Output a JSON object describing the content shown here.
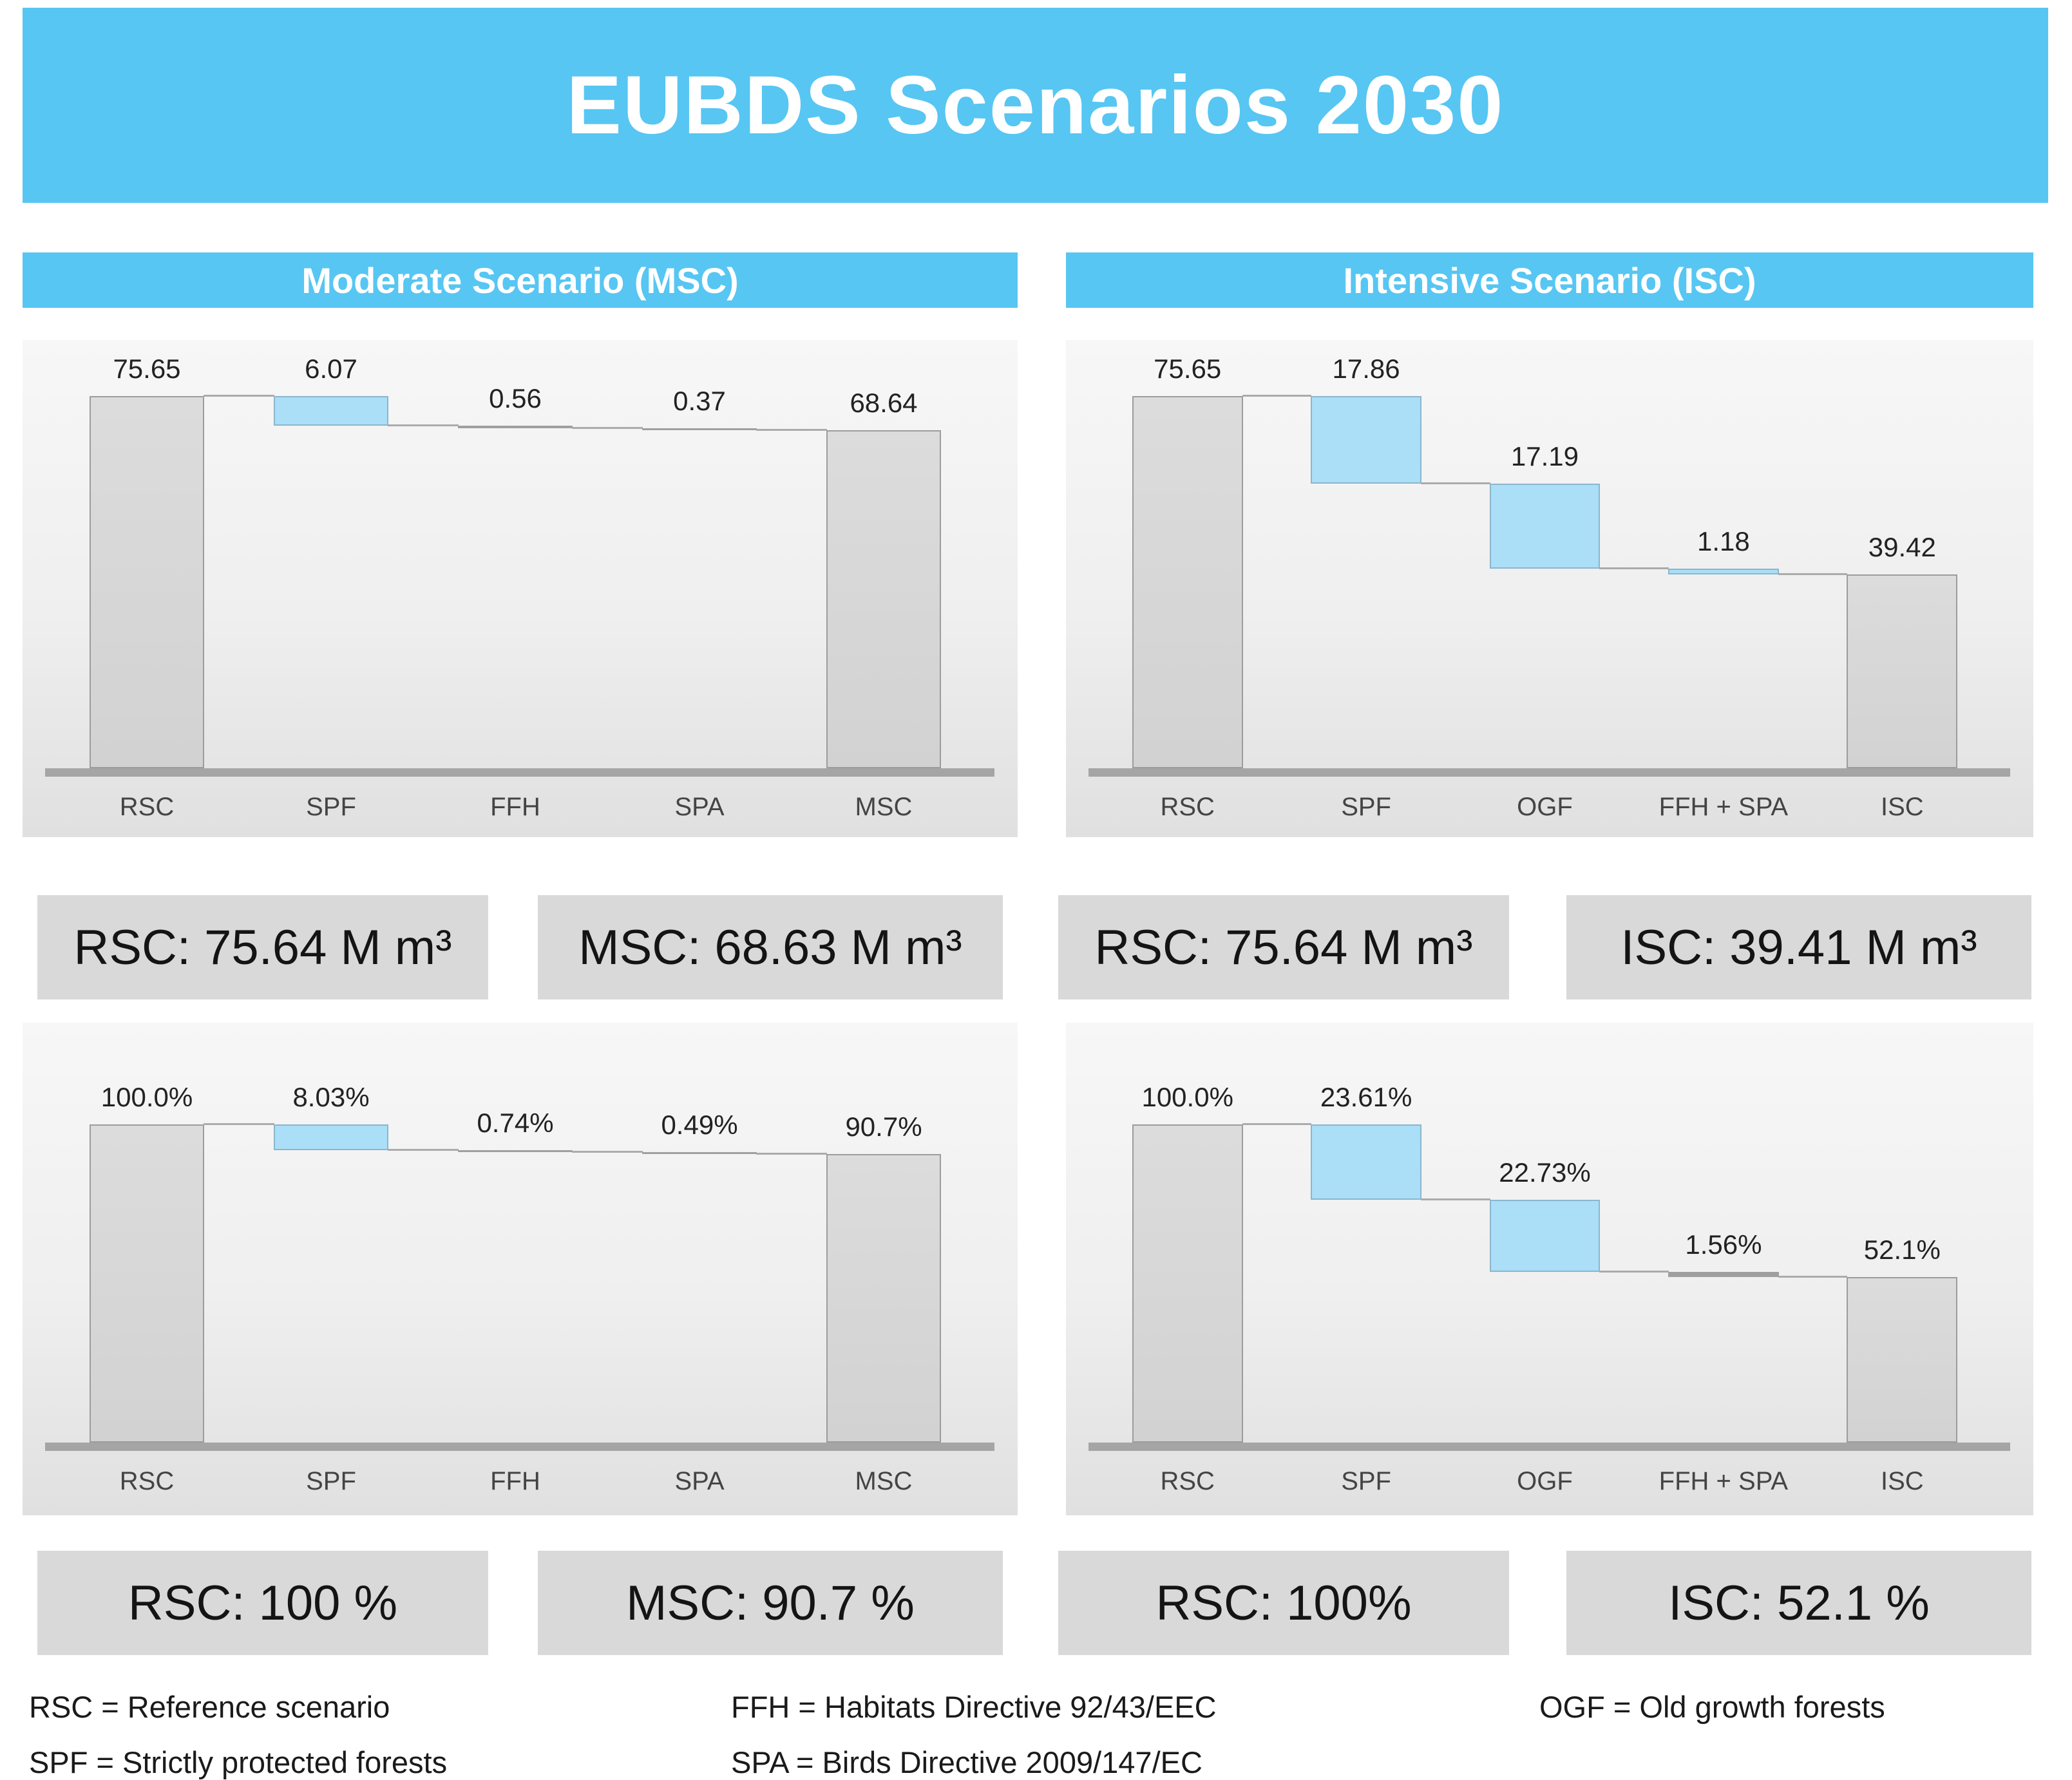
{
  "title": "EUBDS Scenarios 2030",
  "section_headers": {
    "left": "Moderate Scenario (MSC)",
    "right": "Intensive Scenario (ISC)"
  },
  "summary_boxes": {
    "volume": [
      "RSC: 75.64 M m³",
      "MSC: 68.63 M m³",
      "RSC: 75.64 M m³",
      "ISC: 39.41 M m³"
    ],
    "percent": [
      "RSC: 100 %",
      "MSC: 90.7 %",
      "RSC: 100%",
      "ISC: 52.1 %"
    ]
  },
  "legend": {
    "col1": [
      "RSC = Reference scenario",
      "SPF = Strictly protected forests"
    ],
    "col2": [
      "FFH = Habitats Directive 92/43/EEC",
      "SPA = Birds Directive 2009/147/EC"
    ],
    "col3": [
      "OGF = Old growth forests"
    ]
  },
  "colors": {
    "banner_blue": "#57C6F2",
    "bar_gray": "#D7D7D7",
    "bar_blue": "#ABDEF7",
    "bar_sliver_gray": "#9F9F9F",
    "baseline_gray": "#A5A5A5",
    "summary_box_gray": "#D9D9D9"
  },
  "chart_data": [
    {
      "type": "bar",
      "subtype": "waterfall",
      "name": "msc-volume",
      "unit": "M m³",
      "ymax": 87,
      "grid": false,
      "categories": [
        "RSC",
        "SPF",
        "FFH",
        "SPA",
        "MSC"
      ],
      "bars": [
        {
          "category": "RSC",
          "label": "75.65",
          "value": 75.65,
          "kind": "total"
        },
        {
          "category": "SPF",
          "label": "6.07",
          "value": 6.07,
          "kind": "decrease"
        },
        {
          "category": "FFH",
          "label": "0.56",
          "value": 0.56,
          "kind": "decrease"
        },
        {
          "category": "SPA",
          "label": "0.37",
          "value": 0.37,
          "kind": "decrease"
        },
        {
          "category": "MSC",
          "label": "68.64",
          "value": 68.64,
          "kind": "total"
        }
      ]
    },
    {
      "type": "bar",
      "subtype": "waterfall",
      "name": "isc-volume",
      "unit": "M m³",
      "ymax": 87,
      "grid": false,
      "categories": [
        "RSC",
        "SPF",
        "OGF",
        "FFH + SPA",
        "ISC"
      ],
      "bars": [
        {
          "category": "RSC",
          "label": "75.65",
          "value": 75.65,
          "kind": "total"
        },
        {
          "category": "SPF",
          "label": "17.86",
          "value": 17.86,
          "kind": "decrease"
        },
        {
          "category": "OGF",
          "label": "17.19",
          "value": 17.19,
          "kind": "decrease"
        },
        {
          "category": "FFH + SPA",
          "label": "1.18",
          "value": 1.18,
          "kind": "decrease"
        },
        {
          "category": "ISC",
          "label": "39.42",
          "value": 39.42,
          "kind": "total"
        }
      ]
    },
    {
      "type": "bar",
      "subtype": "waterfall",
      "name": "msc-percent",
      "unit": "%",
      "ymax": 132,
      "grid": false,
      "categories": [
        "RSC",
        "SPF",
        "FFH",
        "SPA",
        "MSC"
      ],
      "bars": [
        {
          "category": "RSC",
          "label": "100.0%",
          "value": 100.0,
          "kind": "total"
        },
        {
          "category": "SPF",
          "label": "8.03%",
          "value": 8.03,
          "kind": "decrease"
        },
        {
          "category": "FFH",
          "label": "0.74%",
          "value": 0.74,
          "kind": "decrease"
        },
        {
          "category": "SPA",
          "label": "0.49%",
          "value": 0.49,
          "kind": "decrease"
        },
        {
          "category": "MSC",
          "label": "90.7%",
          "value": 90.7,
          "kind": "total"
        }
      ]
    },
    {
      "type": "bar",
      "subtype": "waterfall",
      "name": "isc-percent",
      "unit": "%",
      "ymax": 132,
      "grid": false,
      "categories": [
        "RSC",
        "SPF",
        "OGF",
        "FFH + SPA",
        "ISC"
      ],
      "bars": [
        {
          "category": "RSC",
          "label": "100.0%",
          "value": 100.0,
          "kind": "total"
        },
        {
          "category": "SPF",
          "label": "23.61%",
          "value": 23.61,
          "kind": "decrease"
        },
        {
          "category": "OGF",
          "label": "22.73%",
          "value": 22.73,
          "kind": "decrease"
        },
        {
          "category": "FFH + SPA",
          "label": "1.56%",
          "value": 1.56,
          "kind": "decrease"
        },
        {
          "category": "ISC",
          "label": "52.1%",
          "value": 52.1,
          "kind": "total"
        }
      ]
    }
  ]
}
